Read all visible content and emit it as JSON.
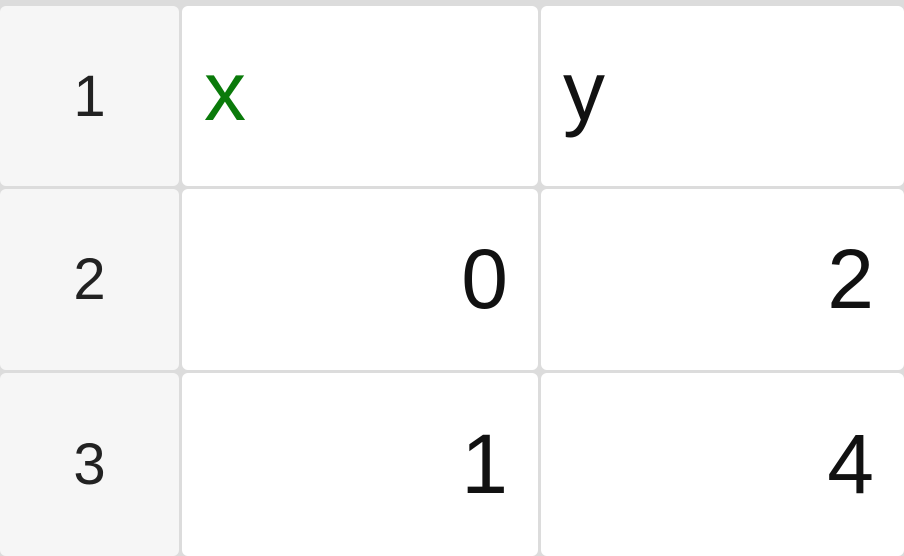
{
  "colors": {
    "header_text_accent": "#0a7a0a",
    "grid": "#dcdcdc",
    "row_header_bg": "#f6f6f6"
  },
  "row_headers": [
    "1",
    "2",
    "3"
  ],
  "rows": [
    [
      "x",
      "y"
    ],
    [
      "0",
      "2"
    ],
    [
      "1",
      "4"
    ]
  ]
}
